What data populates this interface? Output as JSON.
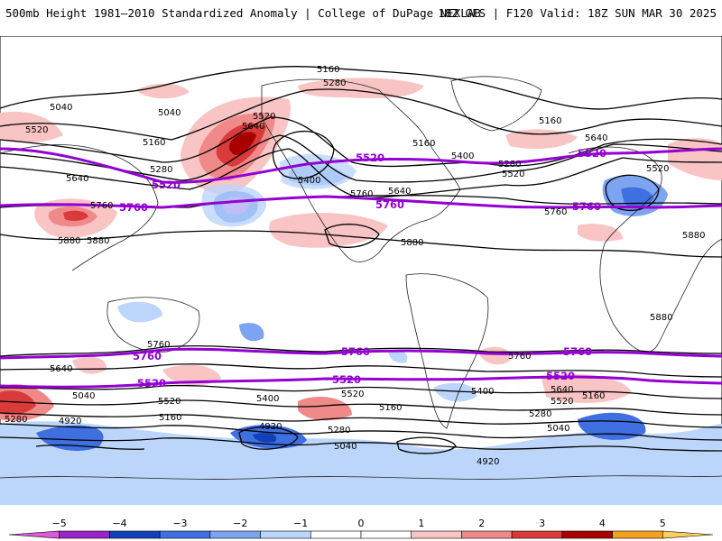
{
  "header": {
    "title_left": "500mb Height 1981–2010 Standardized Anomaly | College of DuPage NEXLAB",
    "title_right": "18Z GFS | F120 Valid: 18Z SUN MAR 30 2025"
  },
  "colorbar": {
    "ticks": [
      "−5",
      "−4",
      "−3",
      "−2",
      "−1",
      "0",
      "1",
      "2",
      "3",
      "4",
      "5"
    ],
    "bins": [
      {
        "color": "#d95bd9"
      },
      {
        "color": "#9b24c9"
      },
      {
        "color": "#1140b8"
      },
      {
        "color": "#3f6fe0"
      },
      {
        "color": "#7da4f0"
      },
      {
        "color": "#bcd6fb"
      },
      {
        "color": "#ffffff"
      },
      {
        "color": "#ffffff"
      },
      {
        "color": "#f9c4c4"
      },
      {
        "color": "#f08a8a"
      },
      {
        "color": "#d93a3a"
      },
      {
        "color": "#a80000"
      },
      {
        "color": "#f4a020"
      },
      {
        "color": "#fbd060"
      }
    ]
  },
  "contour_labels": {
    "black": [
      "5160",
      "5280",
      "5040",
      "5040",
      "5520",
      "5640",
      "5520",
      "5160",
      "5280",
      "5640",
      "5760",
      "5880",
      "5400",
      "5760",
      "5640",
      "5880",
      "5160",
      "5400",
      "5520",
      "5280",
      "5160",
      "5640",
      "5520",
      "5880",
      "5880",
      "5760",
      "5640",
      "5760",
      "5520",
      "5040",
      "5520",
      "5400",
      "5280",
      "5160",
      "4920",
      "4920",
      "5040",
      "5280",
      "5160",
      "5400",
      "5520",
      "5640",
      "5280",
      "5160",
      "5040",
      "4920",
      "5760",
      "5880"
    ],
    "purple": [
      "5520",
      "5520",
      "5520",
      "5760",
      "5760",
      "5760",
      "5520",
      "5520",
      "5520",
      "5760",
      "5760",
      "5760"
    ]
  },
  "anomaly_colors": {
    "strong_positive": "#a80000",
    "positive": "#d93a3a",
    "weak_positive": "#f9c4c4",
    "weak_negative": "#bcd6fb",
    "negative": "#3f6fe0",
    "strong_negative": "#1140b8",
    "extreme_negative": "#d95bd9",
    "purple_contour": "#9400d3"
  }
}
